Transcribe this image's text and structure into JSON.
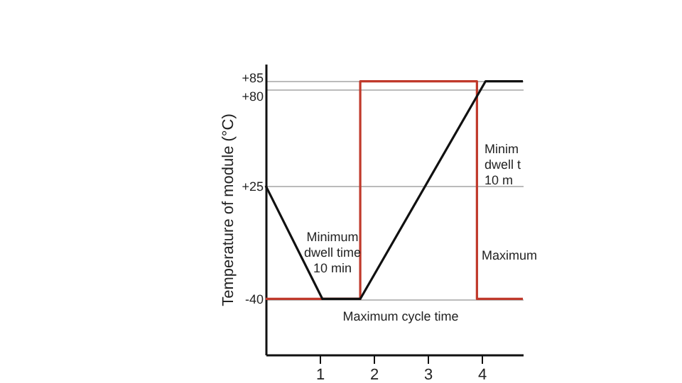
{
  "chart_data": {
    "type": "line",
    "ylabel": "Temperature of module  (°C)",
    "xlim": [
      0,
      4.76
    ],
    "xticks": [
      1,
      2,
      3,
      4
    ],
    "ylim": [
      -72,
      95
    ],
    "yticks": [
      {
        "value": -40,
        "label": "-40"
      },
      {
        "value": 25,
        "label": "+25"
      },
      {
        "value": 80,
        "label": "+80"
      },
      {
        "value": 85,
        "label": "+85"
      }
    ],
    "grid": "y",
    "marker": "none",
    "line_style": "solid",
    "series": [
      {
        "x": [
          0,
          1.75,
          1.75,
          3.91,
          3.91,
          4.76
        ],
        "values": [
          -40,
          -40,
          85,
          85,
          -40,
          -40
        ],
        "color": "#c0392b"
      },
      {
        "x": [
          0,
          1.05,
          1.75,
          4.07,
          4.76
        ],
        "values": [
          25,
          -40,
          -40,
          85,
          85
        ],
        "color": "#111111"
      }
    ],
    "annotations": [
      "Minimum\ndwell time\n10 min",
      "Minim\ndwell t\n10 m",
      "Maximum",
      "Maximum cycle time"
    ]
  }
}
